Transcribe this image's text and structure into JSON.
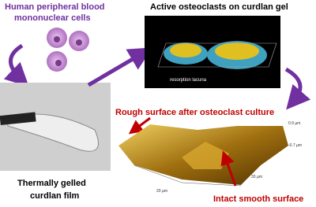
{
  "cells_label": [
    "Human peripheral blood",
    "mononuclear cells"
  ],
  "gel_label": "Active osteoclasts on curdlan gel",
  "lacuna_label": "resorption lacuna",
  "rough_label": "Rough surface after osteoclast culture",
  "axis_labels": {
    "z_top": "0.9 µm",
    "z_bottom": "-0.7 µm",
    "x": "20 µm",
    "y": "33 µm"
  },
  "film_label": [
    "Thermally gelled",
    "curdlan film"
  ],
  "smooth_label": "Intact smooth surface"
}
